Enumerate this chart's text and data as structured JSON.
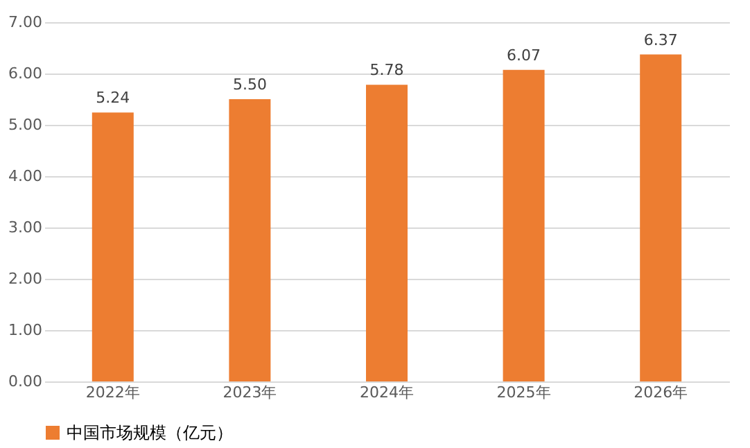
{
  "chart_data": {
    "type": "bar",
    "categories": [
      "2022年",
      "2023年",
      "2024年",
      "2025年",
      "2026年"
    ],
    "series": [
      {
        "name": "中国市场规模（亿元）",
        "color": "#ed7d31",
        "values": [
          5.24,
          5.5,
          5.78,
          6.07,
          6.37
        ],
        "value_labels": [
          "5.24",
          "5.50",
          "5.78",
          "6.07",
          "6.37"
        ]
      }
    ],
    "ylim": [
      0,
      7
    ],
    "yticks": [
      {
        "value": 0,
        "label": "0.00"
      },
      {
        "value": 1,
        "label": "1.00"
      },
      {
        "value": 2,
        "label": "2.00"
      },
      {
        "value": 3,
        "label": "3.00"
      },
      {
        "value": 4,
        "label": "4.00"
      },
      {
        "value": 5,
        "label": "5.00"
      },
      {
        "value": 6,
        "label": "6.00"
      },
      {
        "value": 7,
        "label": "7.00"
      }
    ],
    "grid": "y",
    "legend": "bottom"
  }
}
